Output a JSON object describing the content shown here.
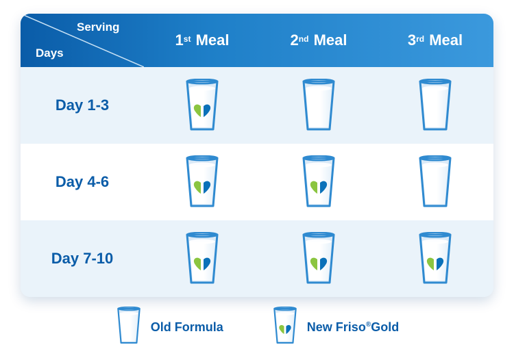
{
  "colors": {
    "header_grad_from": "#0a5ca8",
    "header_grad_to": "#3b99dd",
    "row_alt1_bg": "#eaf3fa",
    "row_alt2_bg": "#ffffff",
    "text_primary": "#0a5ca8",
    "glass_outline": "#2f8ad0",
    "milk_fill": "#ffffff",
    "milk_shade": "#e6f1fa",
    "heart_green": "#8bc540",
    "heart_blue": "#0a71b9"
  },
  "header": {
    "corner_top": "Serving",
    "corner_bottom": "Days",
    "columns": [
      {
        "ord": "1",
        "suffix": "st",
        "label": "Meal"
      },
      {
        "ord": "2",
        "suffix": "nd",
        "label": "Meal"
      },
      {
        "ord": "3",
        "suffix": "rd",
        "label": "Meal"
      }
    ]
  },
  "rows": [
    {
      "label": "Day 1-3",
      "bg": "alt1",
      "cells": [
        "new",
        "old",
        "old"
      ]
    },
    {
      "label": "Day 4-6",
      "bg": "alt2",
      "cells": [
        "new",
        "new",
        "old"
      ]
    },
    {
      "label": "Day 7-10",
      "bg": "alt1",
      "cells": [
        "new",
        "new",
        "new"
      ]
    }
  ],
  "legend": {
    "old": "Old Formula",
    "new_prefix": "New Friso",
    "new_suffix": "Gold"
  },
  "glass_types": {
    "old": {
      "has_heart": false
    },
    "new": {
      "has_heart": true
    }
  }
}
